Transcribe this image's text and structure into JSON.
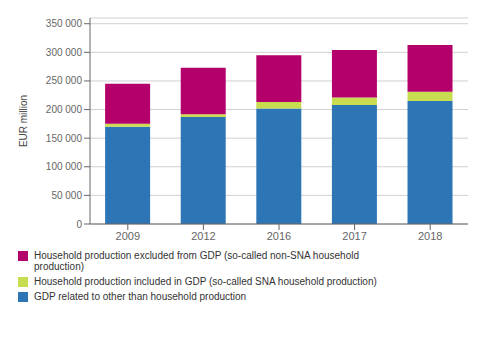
{
  "chart_data": {
    "type": "bar",
    "stacked": true,
    "grid": true,
    "legend": "bottom",
    "ylabel": "EUR million",
    "categories": [
      "2009",
      "2012",
      "2016",
      "2017",
      "2018"
    ],
    "series": [
      {
        "name": "GDP related to other than household production",
        "color": "#2e75b6",
        "values": [
          170000,
          187000,
          202000,
          208000,
          215000
        ]
      },
      {
        "name": "Household production included in GDP (so-called SNA household production)",
        "color": "#c8dc50",
        "values": [
          5000,
          5000,
          11000,
          13000,
          16000
        ]
      },
      {
        "name": "Household production excluded from GDP (so-called non-SNA household\nproduction)",
        "color": "#b4006a",
        "values": [
          70000,
          81000,
          82000,
          83000,
          82000
        ]
      }
    ],
    "ylim": [
      0,
      360000
    ],
    "yticks": [
      0,
      {
        "value": 50000,
        "label": "50 000"
      },
      {
        "value": 100000,
        "label": "100 000"
      },
      {
        "value": 150000,
        "label": "150 000"
      },
      {
        "value": 200000,
        "label": "200 000"
      },
      {
        "value": 250000,
        "label": "250 000"
      },
      {
        "value": 300000,
        "label": "300 000"
      },
      {
        "value": 350000,
        "label": "350 000"
      }
    ]
  }
}
